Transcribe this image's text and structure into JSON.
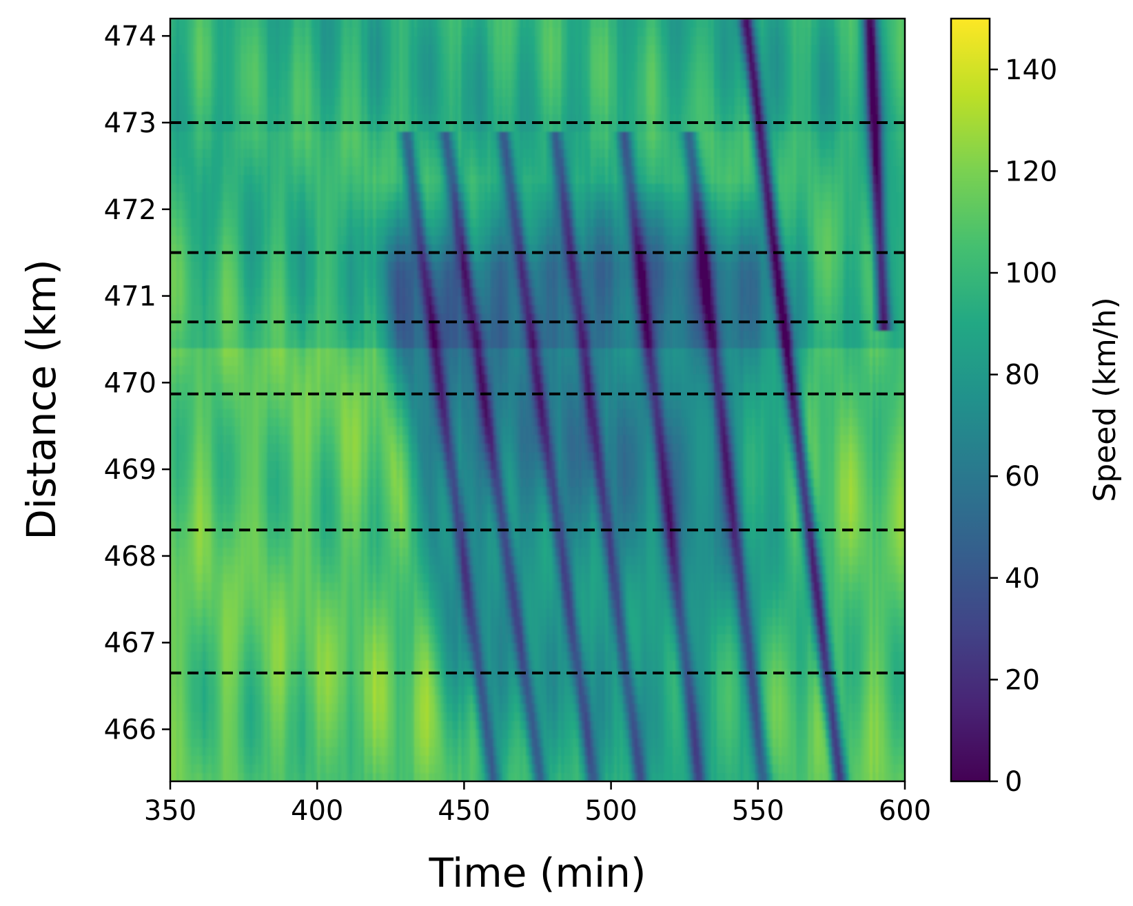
{
  "chart_data": {
    "type": "heatmap",
    "title": "",
    "xlabel": "Time (min)",
    "ylabel": "Distance (km)",
    "xlim": [
      350,
      600
    ],
    "ylim": [
      465.4,
      474.2
    ],
    "x_ticks": [
      "350",
      "400",
      "450",
      "500",
      "550",
      "600"
    ],
    "y_ticks": [
      "466",
      "467",
      "468",
      "469",
      "470",
      "471",
      "472",
      "473",
      "474"
    ],
    "x_tick_values": [
      350,
      400,
      450,
      500,
      550,
      600
    ],
    "y_tick_values": [
      466,
      467,
      468,
      469,
      470,
      471,
      472,
      473,
      474
    ],
    "colormap": "viridis",
    "colorbar": {
      "label": "Speed (km/h)",
      "range": [
        0,
        150
      ],
      "ticks": [
        "0",
        "20",
        "40",
        "60",
        "80",
        "100",
        "120",
        "140"
      ],
      "tick_values": [
        0,
        20,
        40,
        60,
        80,
        100,
        120,
        140
      ]
    },
    "horizontal_dashed_lines_km": [
      473.0,
      471.5,
      470.7,
      469.87,
      468.3,
      466.65
    ],
    "free_flow_speed_kmh": 110,
    "congestion_onset": [
      {
        "distance_km": 471.5,
        "time_min": 418
      },
      {
        "distance_km": 465.4,
        "time_min": 448
      }
    ],
    "congestion_upper_boundary_km": 472.7,
    "stop_and_go_waves": [
      {
        "time_min_at_top": 425,
        "time_min_at_bottom": 460
      },
      {
        "time_min_at_top": 438,
        "time_min_at_bottom": 476
      },
      {
        "time_min_at_top": 458,
        "time_min_at_bottom": 494
      },
      {
        "time_min_at_top": 476,
        "time_min_at_bottom": 510
      },
      {
        "time_min_at_top": 500,
        "time_min_at_bottom": 530
      },
      {
        "time_min_at_top": 522,
        "time_min_at_bottom": 552
      },
      {
        "time_min_at_top": 546,
        "time_min_at_bottom": 578,
        "distance_top_km": 474.2
      },
      {
        "time_min_at_top": 588,
        "time_min_at_bottom": 600,
        "distance_top_km": 474.2,
        "distance_bottom_km": 470.8
      }
    ]
  },
  "colors": {
    "dashed_line": "#000000",
    "axis": "#000000"
  }
}
